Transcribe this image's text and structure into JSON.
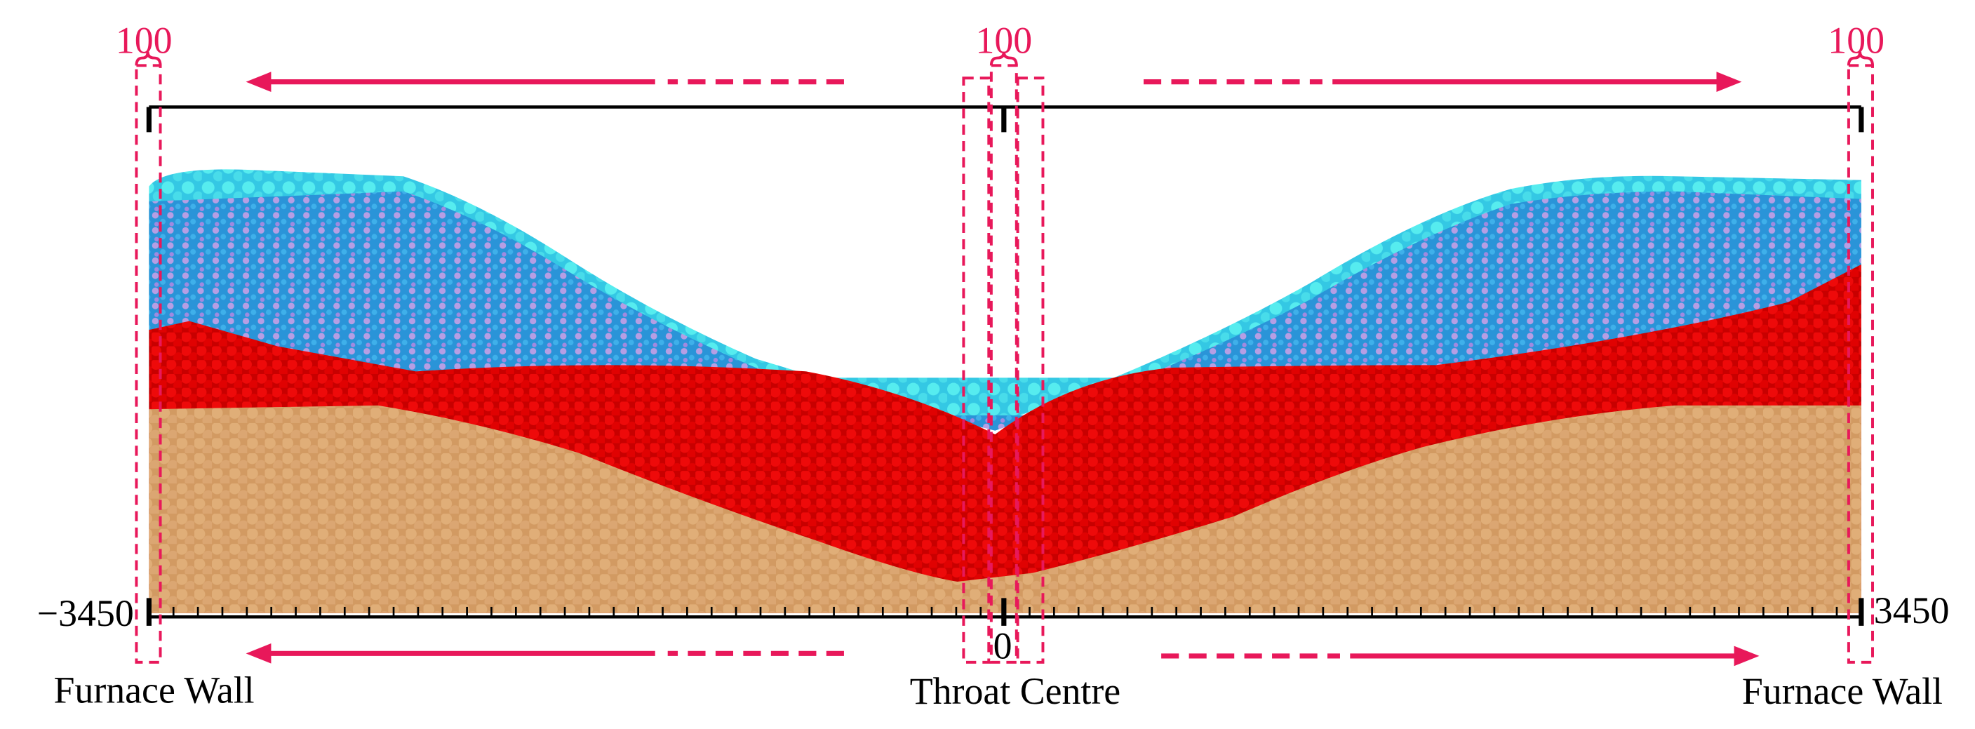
{
  "labels": {
    "width_left": "100",
    "width_centre": "100",
    "width_right": "100",
    "axis_left": "−3450",
    "axis_centre": "0",
    "axis_right": "3450",
    "wall_left": "Furnace Wall",
    "centre": "Throat Centre",
    "wall_right": "Furnace Wall"
  }
}
